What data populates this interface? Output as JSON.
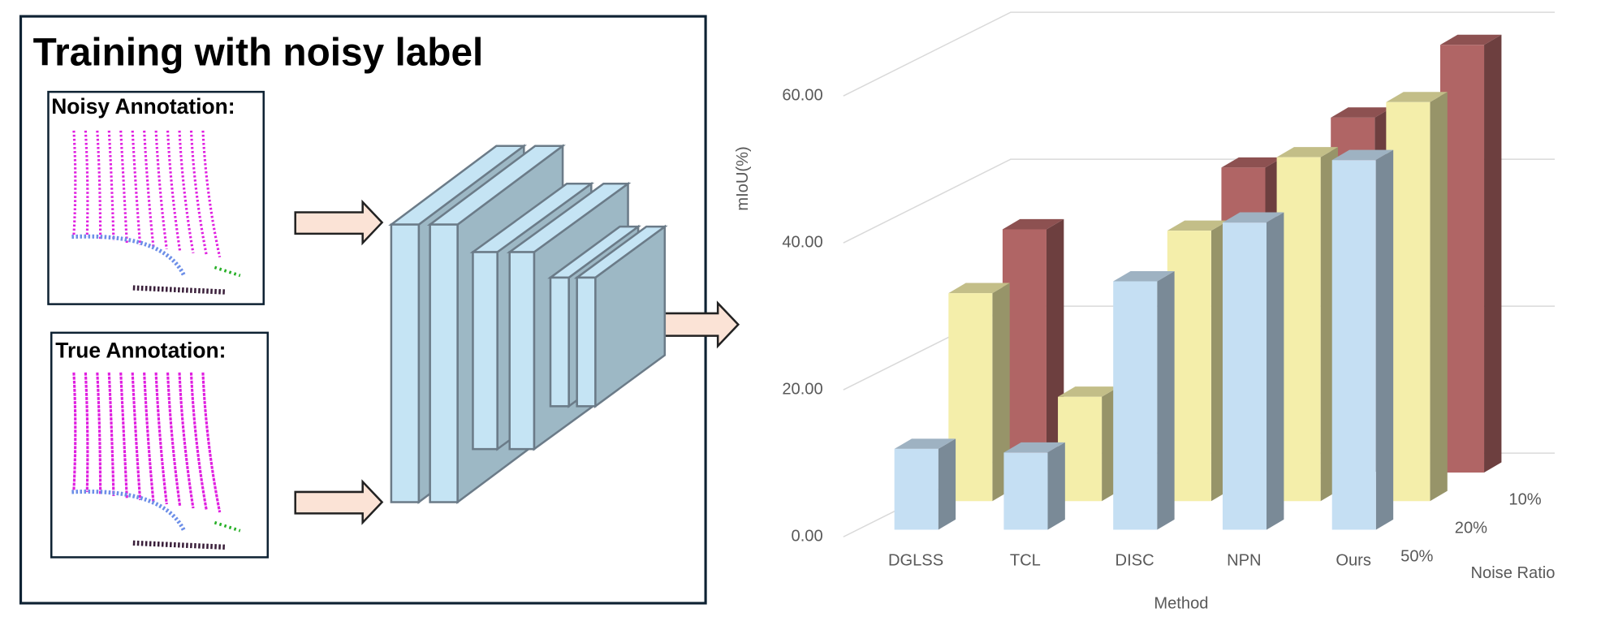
{
  "diagram": {
    "title": "Training with noisy label",
    "noisy_label": "Noisy Annotation:",
    "true_label": "True Annotation:"
  },
  "chart_data": {
    "type": "bar3d",
    "ylabel": "mIoU(%)",
    "xlabel": "Method",
    "zlabel": "Noise Ratio",
    "categories": [
      "DGLSS",
      "TCL",
      "DISC",
      "NPN",
      "Ours"
    ],
    "series": [
      {
        "name": "50%",
        "color": "#c5dff3",
        "values": [
          11,
          10.5,
          33.8,
          41.8,
          50.3
        ]
      },
      {
        "name": "20%",
        "color": "#f4eeaa",
        "values": [
          28.3,
          14.2,
          36.8,
          46.8,
          54.3
        ]
      },
      {
        "name": "10%",
        "color": "#b06565",
        "values": [
          33.1,
          null,
          41.5,
          48.3,
          58.2
        ]
      }
    ],
    "ylim": [
      0,
      60
    ],
    "yticks": [
      {
        "value": 0,
        "label": "0.00"
      },
      {
        "value": 20,
        "label": "20.00"
      },
      {
        "value": 40,
        "label": "40.00"
      },
      {
        "value": 60,
        "label": "60.00"
      }
    ],
    "grid": true
  }
}
